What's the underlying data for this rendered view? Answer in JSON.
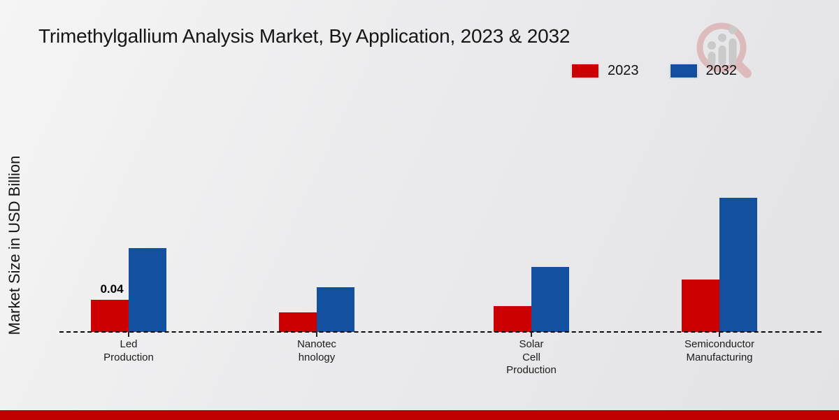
{
  "title": "Trimethylgallium Analysis Market, By Application, 2023 & 2032",
  "y_axis_label": "Market Size in USD Billion",
  "legend": {
    "items": [
      {
        "label": "2023",
        "color": "#cc0000"
      },
      {
        "label": "2032",
        "color": "#1450a0"
      }
    ]
  },
  "footer": {
    "band_color": "#c00000"
  },
  "logo": {
    "icon": "magnifier-bar-chart-logo",
    "ring_color": "#dcb6b8",
    "bars_color": "#c7c7c7"
  },
  "chart_data": {
    "type": "bar",
    "title": "Trimethylgallium Analysis Market, By Application, 2023 & 2032",
    "xlabel": "",
    "ylabel": "Market Size in USD Billion",
    "unit": "USD Billion",
    "categories": [
      "Led Production",
      "Nanotechnology",
      "Solar Cell Production",
      "Semiconductor Manufacturing"
    ],
    "category_label_lines": [
      [
        "Led",
        "Production"
      ],
      [
        "Nanotec",
        "hnology"
      ],
      [
        "Solar",
        "Cell",
        "Production"
      ],
      [
        "Semiconductor",
        "Manufacturing"
      ]
    ],
    "series": [
      {
        "name": "2023",
        "color": "#cc0000",
        "values": [
          0.04,
          0.024,
          0.032,
          0.065
        ]
      },
      {
        "name": "2032",
        "color": "#1450a0",
        "values": [
          0.104,
          0.056,
          0.081,
          0.167
        ]
      }
    ],
    "data_labels": [
      {
        "series": "2023",
        "category": "Led Production",
        "text": "0.04"
      }
    ],
    "ylim": [
      0,
      0.18
    ],
    "grid": false,
    "legend_position": "top-right",
    "baseline_style": "dashed"
  }
}
